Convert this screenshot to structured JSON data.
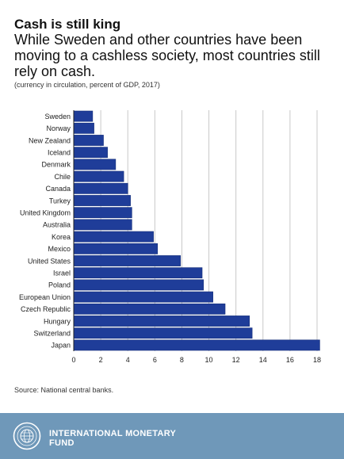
{
  "header": {
    "title": "Cash is still king",
    "subtitle": "While Sweden and other countries have been moving to a cashless society, most countries still rely on cash.",
    "note": "(currency in circulation, percent of GDP, 2017)"
  },
  "footer": {
    "source": "Source: National central banks.",
    "org_name": "INTERNATIONAL MONETARY FUND",
    "logo_icon": "imf-seal-icon"
  },
  "colors": {
    "bar": "#1f3d99",
    "bar_edge": "#16307a",
    "footer_bg": "#6f98b9",
    "grid": "#c8c8c8"
  },
  "chart_data": {
    "type": "bar",
    "orientation": "horizontal",
    "categories": [
      "Sweden",
      "Norway",
      "New Zealand",
      "Iceland",
      "Denmark",
      "Chile",
      "Canada",
      "Turkey",
      "United Kingdom",
      "Australia",
      "Korea",
      "Mexico",
      "United States",
      "Israel",
      "Poland",
      "European Union",
      "Czech Republic",
      "Hungary",
      "Switzerland",
      "Japan"
    ],
    "values": [
      1.4,
      1.5,
      2.2,
      2.5,
      3.1,
      3.7,
      4.0,
      4.2,
      4.3,
      4.3,
      5.9,
      6.2,
      7.9,
      9.5,
      9.6,
      10.3,
      11.2,
      13.0,
      13.2,
      18.2
    ],
    "xlim": [
      0,
      18
    ],
    "xticks": [
      0,
      2,
      4,
      6,
      8,
      10,
      12,
      14,
      16,
      18
    ],
    "grid": true
  }
}
